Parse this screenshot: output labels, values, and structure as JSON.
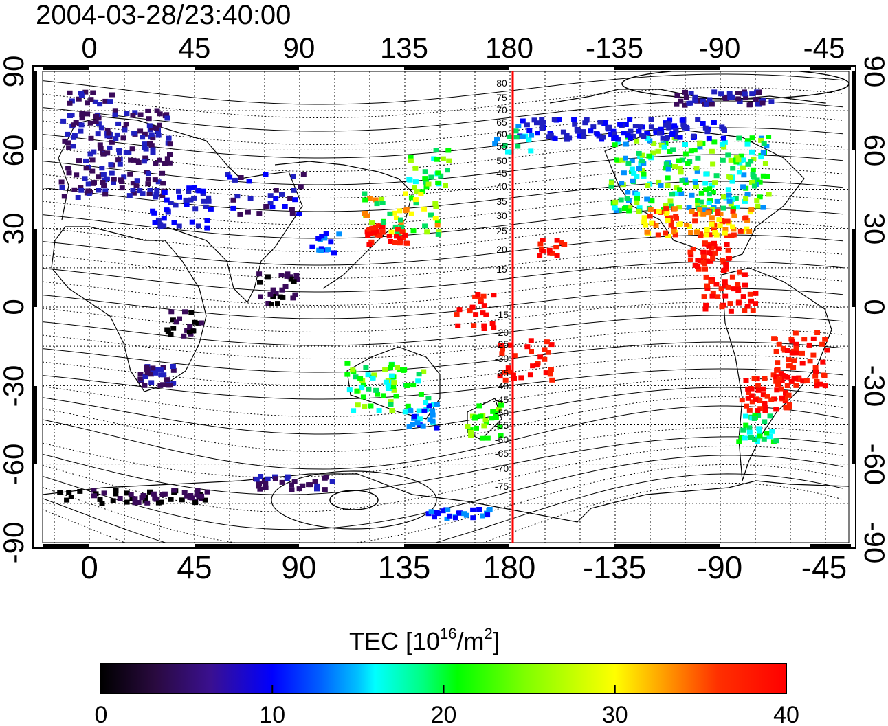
{
  "title": "2004-03-28/23:40:00",
  "axes": {
    "x_ticks": [
      "0",
      "45",
      "90",
      "135",
      "180",
      "-135",
      "-90",
      "-45"
    ],
    "y_ticks": [
      "90",
      "60",
      "30",
      "0",
      "-30",
      "-60",
      "-90"
    ]
  },
  "contour_labels": [
    "80",
    "75",
    "70",
    "65",
    "60",
    "55",
    "50",
    "45",
    "40",
    "35",
    "30",
    "25",
    "20",
    "15",
    "-15",
    "-20",
    "-25",
    "-30",
    "-35",
    "-40",
    "-45",
    "-50",
    "-55",
    "-60",
    "-65",
    "-70",
    "-75"
  ],
  "colorbar": {
    "title_main": "TEC  [10",
    "title_sup1": "16",
    "title_mid": "/m",
    "title_sup2": "2",
    "title_end": "]",
    "ticks": [
      "0",
      "10",
      "20",
      "30",
      "40"
    ],
    "colors": [
      "#000000",
      "#3a0a5a",
      "#2020c0",
      "#0000ff",
      "#0090ff",
      "#00ffff",
      "#00e060",
      "#00ff00",
      "#a0ff00",
      "#ffff00",
      "#ff8000",
      "#ff2000",
      "#ff0000"
    ]
  },
  "regions": [
    {
      "name": "Europe",
      "level": "low"
    },
    {
      "name": "North America",
      "level": "mid"
    },
    {
      "name": "South America",
      "level": "high"
    },
    {
      "name": "East Asia",
      "level": "mid-high"
    },
    {
      "name": "Australia",
      "level": "mid"
    },
    {
      "name": "Antarctica",
      "level": "low"
    }
  ]
}
